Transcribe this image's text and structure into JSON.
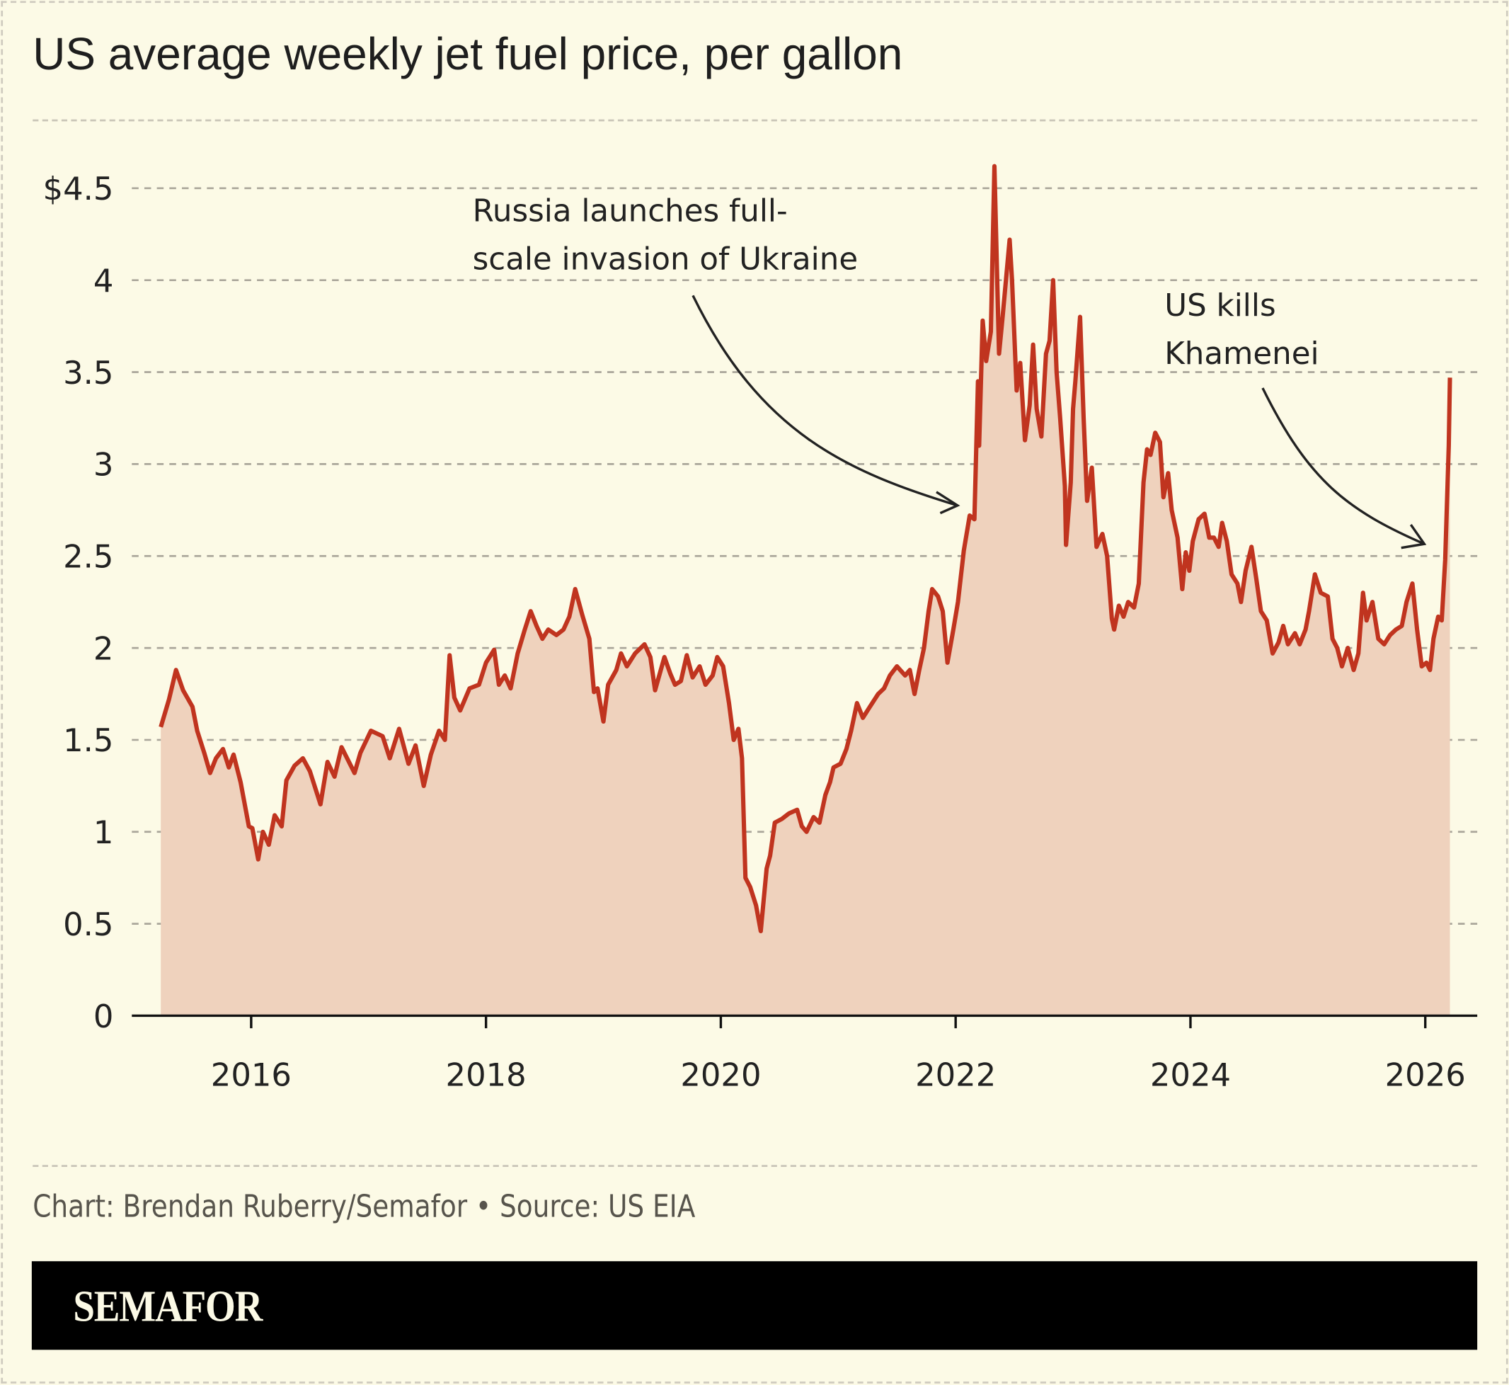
{
  "chart_data": {
    "type": "area",
    "title": "US average weekly jet fuel price, per gallon",
    "xlabel": "",
    "ylabel": "",
    "xlim": [
      2015.0,
      2026.4
    ],
    "ylim": [
      0,
      4.5
    ],
    "grid": true,
    "y_ticks": [
      {
        "value": 0,
        "label": "0"
      },
      {
        "value": 0.5,
        "label": "0.5"
      },
      {
        "value": 1,
        "label": "1"
      },
      {
        "value": 1.5,
        "label": "1.5"
      },
      {
        "value": 2,
        "label": "2"
      },
      {
        "value": 2.5,
        "label": "2.5"
      },
      {
        "value": 3,
        "label": "3"
      },
      {
        "value": 3.5,
        "label": "3.5"
      },
      {
        "value": 4,
        "label": "4"
      },
      {
        "value": 4.5,
        "label": "$4.5"
      }
    ],
    "x_ticks": [
      {
        "value": 2016,
        "label": "2016"
      },
      {
        "value": 2018,
        "label": "2018"
      },
      {
        "value": 2020,
        "label": "2020"
      },
      {
        "value": 2022,
        "label": "2022"
      },
      {
        "value": 2024,
        "label": "2024"
      },
      {
        "value": 2026,
        "label": "2026"
      }
    ],
    "colors": {
      "line": "#c0341f",
      "fill": "#efd2bd",
      "background": "#fcfae6"
    },
    "annotations": [
      {
        "lines": [
          "Russia launches full-",
          "scale invasion of Ukraine"
        ],
        "target": [
          2022.0,
          2.75
        ]
      },
      {
        "lines": [
          "US kills",
          "Khamenei"
        ],
        "target": [
          2026.0,
          2.55
        ]
      }
    ],
    "series": [
      {
        "points": [
          [
            2015.23,
            1.57
          ],
          [
            2015.3,
            1.72
          ],
          [
            2015.36,
            1.88
          ],
          [
            2015.42,
            1.77
          ],
          [
            2015.5,
            1.68
          ],
          [
            2015.54,
            1.55
          ],
          [
            2015.6,
            1.43
          ],
          [
            2015.65,
            1.32
          ],
          [
            2015.7,
            1.4
          ],
          [
            2015.76,
            1.45
          ],
          [
            2015.81,
            1.35
          ],
          [
            2015.85,
            1.42
          ],
          [
            2015.91,
            1.27
          ],
          [
            2015.98,
            1.03
          ],
          [
            2016.01,
            1.02
          ],
          [
            2016.06,
            0.85
          ],
          [
            2016.1,
            1.0
          ],
          [
            2016.15,
            0.93
          ],
          [
            2016.2,
            1.09
          ],
          [
            2016.26,
            1.03
          ],
          [
            2016.3,
            1.28
          ],
          [
            2016.37,
            1.36
          ],
          [
            2016.44,
            1.4
          ],
          [
            2016.5,
            1.33
          ],
          [
            2016.59,
            1.15
          ],
          [
            2016.65,
            1.38
          ],
          [
            2016.71,
            1.3
          ],
          [
            2016.77,
            1.46
          ],
          [
            2016.88,
            1.32
          ],
          [
            2016.93,
            1.43
          ],
          [
            2017.02,
            1.55
          ],
          [
            2017.12,
            1.52
          ],
          [
            2017.18,
            1.4
          ],
          [
            2017.26,
            1.56
          ],
          [
            2017.34,
            1.37
          ],
          [
            2017.4,
            1.47
          ],
          [
            2017.47,
            1.25
          ],
          [
            2017.53,
            1.42
          ],
          [
            2017.6,
            1.55
          ],
          [
            2017.65,
            1.5
          ],
          [
            2017.69,
            1.96
          ],
          [
            2017.73,
            1.73
          ],
          [
            2017.78,
            1.66
          ],
          [
            2017.86,
            1.78
          ],
          [
            2017.94,
            1.8
          ],
          [
            2018.0,
            1.92
          ],
          [
            2018.07,
            1.99
          ],
          [
            2018.11,
            1.8
          ],
          [
            2018.16,
            1.85
          ],
          [
            2018.21,
            1.78
          ],
          [
            2018.27,
            1.97
          ],
          [
            2018.33,
            2.1
          ],
          [
            2018.38,
            2.2
          ],
          [
            2018.43,
            2.12
          ],
          [
            2018.48,
            2.05
          ],
          [
            2018.53,
            2.1
          ],
          [
            2018.6,
            2.07
          ],
          [
            2018.66,
            2.1
          ],
          [
            2018.71,
            2.17
          ],
          [
            2018.76,
            2.32
          ],
          [
            2018.82,
            2.18
          ],
          [
            2018.88,
            2.05
          ],
          [
            2018.92,
            1.76
          ],
          [
            2018.95,
            1.78
          ],
          [
            2019.0,
            1.6
          ],
          [
            2019.04,
            1.8
          ],
          [
            2019.11,
            1.88
          ],
          [
            2019.15,
            1.97
          ],
          [
            2019.2,
            1.9
          ],
          [
            2019.27,
            1.97
          ],
          [
            2019.35,
            2.02
          ],
          [
            2019.4,
            1.95
          ],
          [
            2019.44,
            1.77
          ],
          [
            2019.52,
            1.95
          ],
          [
            2019.57,
            1.86
          ],
          [
            2019.61,
            1.8
          ],
          [
            2019.66,
            1.82
          ],
          [
            2019.71,
            1.96
          ],
          [
            2019.76,
            1.84
          ],
          [
            2019.82,
            1.9
          ],
          [
            2019.87,
            1.8
          ],
          [
            2019.93,
            1.85
          ],
          [
            2019.97,
            1.95
          ],
          [
            2020.02,
            1.9
          ],
          [
            2020.07,
            1.7
          ],
          [
            2020.11,
            1.5
          ],
          [
            2020.15,
            1.56
          ],
          [
            2020.18,
            1.4
          ],
          [
            2020.21,
            0.75
          ],
          [
            2020.25,
            0.7
          ],
          [
            2020.3,
            0.6
          ],
          [
            2020.34,
            0.46
          ],
          [
            2020.39,
            0.8
          ],
          [
            2020.42,
            0.87
          ],
          [
            2020.46,
            1.05
          ],
          [
            2020.52,
            1.07
          ],
          [
            2020.58,
            1.1
          ],
          [
            2020.65,
            1.12
          ],
          [
            2020.69,
            1.03
          ],
          [
            2020.73,
            1.0
          ],
          [
            2020.79,
            1.08
          ],
          [
            2020.84,
            1.05
          ],
          [
            2020.89,
            1.2
          ],
          [
            2020.93,
            1.27
          ],
          [
            2020.96,
            1.35
          ],
          [
            2021.02,
            1.37
          ],
          [
            2021.07,
            1.45
          ],
          [
            2021.11,
            1.55
          ],
          [
            2021.16,
            1.7
          ],
          [
            2021.21,
            1.62
          ],
          [
            2021.27,
            1.68
          ],
          [
            2021.34,
            1.75
          ],
          [
            2021.39,
            1.78
          ],
          [
            2021.44,
            1.85
          ],
          [
            2021.5,
            1.9
          ],
          [
            2021.57,
            1.85
          ],
          [
            2021.61,
            1.88
          ],
          [
            2021.65,
            1.75
          ],
          [
            2021.69,
            1.88
          ],
          [
            2021.73,
            2.0
          ],
          [
            2021.77,
            2.2
          ],
          [
            2021.8,
            2.32
          ],
          [
            2021.85,
            2.28
          ],
          [
            2021.89,
            2.2
          ],
          [
            2021.93,
            1.92
          ],
          [
            2021.98,
            2.1
          ],
          [
            2022.02,
            2.25
          ],
          [
            2022.07,
            2.53
          ],
          [
            2022.12,
            2.72
          ],
          [
            2022.16,
            2.7
          ],
          [
            2022.19,
            3.45
          ],
          [
            2022.2,
            3.1
          ],
          [
            2022.23,
            3.78
          ],
          [
            2022.26,
            3.56
          ],
          [
            2022.3,
            3.72
          ],
          [
            2022.33,
            4.62
          ],
          [
            2022.37,
            3.6
          ],
          [
            2022.4,
            3.8
          ],
          [
            2022.46,
            4.22
          ],
          [
            2022.48,
            4.0
          ],
          [
            2022.52,
            3.4
          ],
          [
            2022.55,
            3.55
          ],
          [
            2022.59,
            3.13
          ],
          [
            2022.63,
            3.32
          ],
          [
            2022.66,
            3.65
          ],
          [
            2022.69,
            3.3
          ],
          [
            2022.73,
            3.15
          ],
          [
            2022.77,
            3.6
          ],
          [
            2022.8,
            3.67
          ],
          [
            2022.83,
            4.0
          ],
          [
            2022.86,
            3.5
          ],
          [
            2022.89,
            3.25
          ],
          [
            2022.93,
            2.88
          ],
          [
            2022.94,
            2.56
          ],
          [
            2022.98,
            2.9
          ],
          [
            2023.0,
            3.3
          ],
          [
            2023.02,
            3.45
          ],
          [
            2023.06,
            3.8
          ],
          [
            2023.09,
            3.25
          ],
          [
            2023.12,
            2.8
          ],
          [
            2023.16,
            2.98
          ],
          [
            2023.2,
            2.55
          ],
          [
            2023.25,
            2.62
          ],
          [
            2023.29,
            2.5
          ],
          [
            2023.33,
            2.16
          ],
          [
            2023.35,
            2.1
          ],
          [
            2023.39,
            2.23
          ],
          [
            2023.43,
            2.17
          ],
          [
            2023.47,
            2.25
          ],
          [
            2023.52,
            2.22
          ],
          [
            2023.56,
            2.35
          ],
          [
            2023.6,
            2.9
          ],
          [
            2023.63,
            3.08
          ],
          [
            2023.66,
            3.05
          ],
          [
            2023.7,
            3.17
          ],
          [
            2023.74,
            3.12
          ],
          [
            2023.77,
            2.82
          ],
          [
            2023.81,
            2.95
          ],
          [
            2023.84,
            2.75
          ],
          [
            2023.89,
            2.6
          ],
          [
            2023.93,
            2.32
          ],
          [
            2023.96,
            2.52
          ],
          [
            2023.99,
            2.42
          ],
          [
            2024.02,
            2.58
          ],
          [
            2024.07,
            2.7
          ],
          [
            2024.12,
            2.73
          ],
          [
            2024.16,
            2.6
          ],
          [
            2024.2,
            2.6
          ],
          [
            2024.24,
            2.55
          ],
          [
            2024.27,
            2.68
          ],
          [
            2024.31,
            2.58
          ],
          [
            2024.35,
            2.4
          ],
          [
            2024.4,
            2.35
          ],
          [
            2024.43,
            2.25
          ],
          [
            2024.47,
            2.42
          ],
          [
            2024.52,
            2.55
          ],
          [
            2024.56,
            2.38
          ],
          [
            2024.6,
            2.2
          ],
          [
            2024.65,
            2.15
          ],
          [
            2024.7,
            1.97
          ],
          [
            2024.75,
            2.03
          ],
          [
            2024.79,
            2.12
          ],
          [
            2024.83,
            2.02
          ],
          [
            2024.89,
            2.08
          ],
          [
            2024.93,
            2.02
          ],
          [
            2024.98,
            2.1
          ],
          [
            2025.01,
            2.2
          ],
          [
            2025.06,
            2.4
          ],
          [
            2025.11,
            2.3
          ],
          [
            2025.17,
            2.28
          ],
          [
            2025.21,
            2.05
          ],
          [
            2025.25,
            2.0
          ],
          [
            2025.29,
            1.9
          ],
          [
            2025.34,
            2.0
          ],
          [
            2025.39,
            1.88
          ],
          [
            2025.43,
            1.97
          ],
          [
            2025.47,
            2.3
          ],
          [
            2025.5,
            2.15
          ],
          [
            2025.55,
            2.25
          ],
          [
            2025.6,
            2.05
          ],
          [
            2025.65,
            2.02
          ],
          [
            2025.7,
            2.07
          ],
          [
            2025.75,
            2.1
          ],
          [
            2025.8,
            2.12
          ],
          [
            2025.84,
            2.25
          ],
          [
            2025.89,
            2.35
          ],
          [
            2025.93,
            2.1
          ],
          [
            2025.97,
            1.9
          ],
          [
            2026.01,
            1.92
          ],
          [
            2026.04,
            1.88
          ],
          [
            2026.07,
            2.05
          ],
          [
            2026.11,
            2.17
          ],
          [
            2026.14,
            2.15
          ],
          [
            2026.17,
            2.48
          ],
          [
            2026.2,
            3.1
          ],
          [
            2026.21,
            3.47
          ]
        ]
      }
    ]
  },
  "footer": {
    "credit": "Chart: Brendan Ruberry/Semafor • Source: US EIA",
    "brand": "SEMAFOR"
  }
}
